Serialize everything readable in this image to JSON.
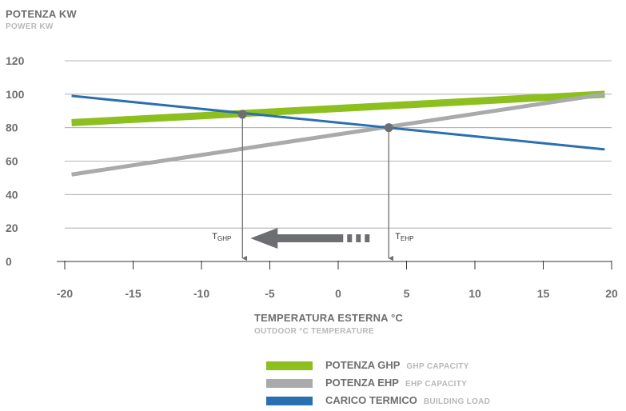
{
  "chart_data": {
    "type": "line",
    "ylabel": "POTENZA KW",
    "ylabel_sub": "POWER KW",
    "xlabel": "TEMPERATURA ESTERNA °C",
    "xlabel_sub": "OUTDOOR °C TEMPERATURE",
    "xlim": [
      -20,
      20
    ],
    "ylim": [
      0,
      120
    ],
    "xticks": [
      "-20",
      "-15",
      "-10",
      "-5",
      "0",
      "5",
      "10",
      "15",
      "20"
    ],
    "yticks": [
      "0",
      "20",
      "40",
      "60",
      "80",
      "100",
      "120"
    ],
    "grid": "horizontal",
    "legend_position": "bottom",
    "series": [
      {
        "name": "POTENZA GHP",
        "name_sub": "GHP CAPACITY",
        "color": "#8dbf1f",
        "x": [
          -19.5,
          19.5
        ],
        "y": [
          83,
          100
        ]
      },
      {
        "name": "POTENZA EHP",
        "name_sub": "EHP CAPACITY",
        "color": "#a9aaac",
        "x": [
          -19.5,
          19.5
        ],
        "y": [
          52,
          100
        ]
      },
      {
        "name": "CARICO TERMICO",
        "name_sub": "BUILDING LOAD",
        "color": "#2a6fb0",
        "x": [
          -19.5,
          19.5
        ],
        "y": [
          99,
          67
        ]
      }
    ],
    "annotations": [
      {
        "label_main": "T",
        "label_sub": "GHP",
        "x": -7,
        "y": 88
      },
      {
        "label_main": "T",
        "label_sub": "EHP",
        "x": 3.7,
        "y": 80
      }
    ],
    "arrow_color": "#6d6e71"
  }
}
